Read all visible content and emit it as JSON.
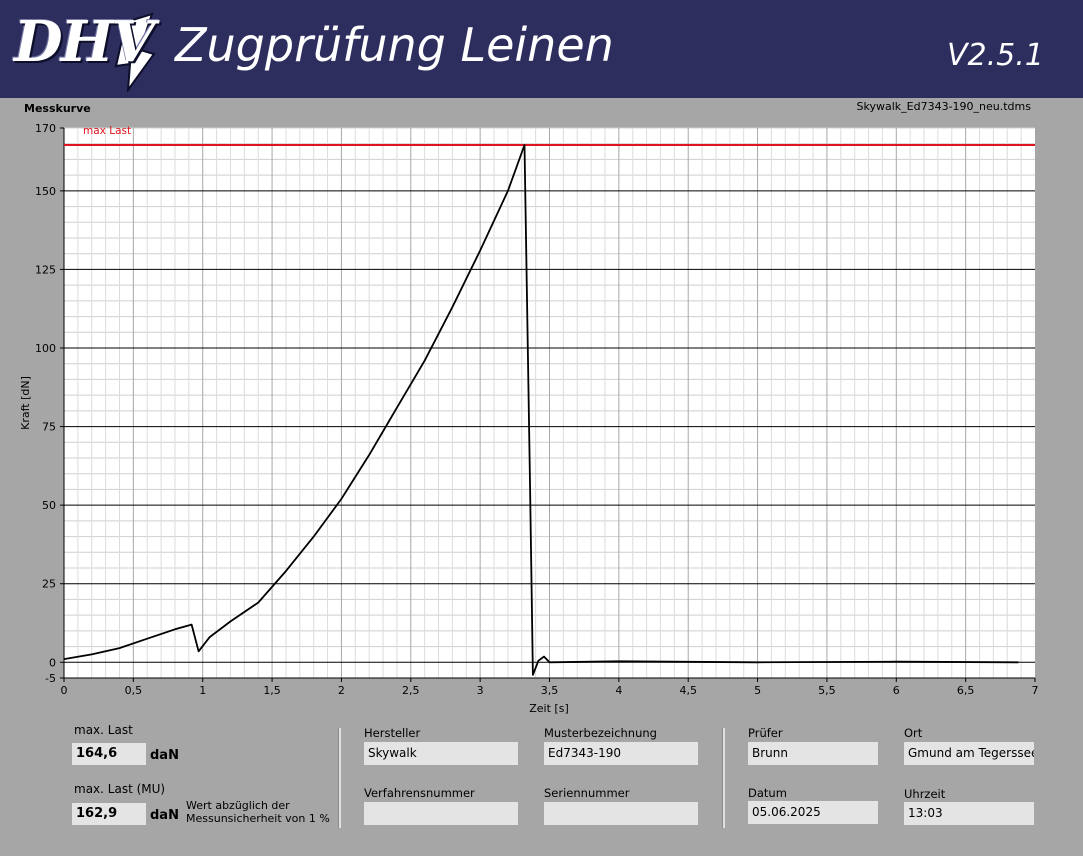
{
  "header": {
    "logo_text": "DHV",
    "title": "Zugprüfung Leinen",
    "version": "V2.5.1"
  },
  "chart_section": {
    "title": "Messkurve",
    "filename": "Skywalk_Ed7343-190_neu.tdms"
  },
  "chart_data": {
    "type": "line",
    "xlabel": "Zeit [s]",
    "ylabel": "Kraft [dN]",
    "xlim": [
      0,
      7
    ],
    "ylim": [
      -5,
      170
    ],
    "x_ticks": [
      "0",
      "0,5",
      "1",
      "1,5",
      "2",
      "2,5",
      "3",
      "3,5",
      "4",
      "4,5",
      "5",
      "5,5",
      "6",
      "6,5",
      "7"
    ],
    "y_ticks": [
      "-5",
      "0",
      "25",
      "50",
      "75",
      "100",
      "125",
      "150",
      "170"
    ],
    "reference_line": {
      "name": "max Last",
      "value": 164.6,
      "color": "#e0141e"
    },
    "series": [
      {
        "x": [
          0,
          0.2,
          0.4,
          0.6,
          0.8,
          0.92,
          0.97,
          1.05,
          1.2,
          1.4,
          1.6,
          1.8,
          2.0,
          2.2,
          2.4,
          2.6,
          2.8,
          3.0,
          3.2,
          3.32,
          3.36,
          3.38,
          3.42,
          3.46,
          3.5,
          4.0,
          5.0,
          6.0,
          6.88
        ],
        "y": [
          1,
          2.5,
          4.5,
          7.5,
          10.5,
          12,
          3.5,
          8,
          13,
          19,
          29,
          40,
          52,
          66,
          81,
          96,
          113,
          131,
          150,
          164.6,
          55,
          -4,
          0.5,
          1.8,
          0,
          0.3,
          0,
          0.2,
          0
        ],
        "color": "#000000"
      }
    ]
  },
  "results": {
    "max_last_label": "max. Last",
    "max_last_value": "164,6",
    "max_last_unit": "daN",
    "max_last_mu_label": "max. Last (MU)",
    "max_last_mu_value": "162,9",
    "max_last_mu_unit": "daN",
    "note_line1": "Wert abzüglich der",
    "note_line2": "Messunsicherheit von 1 %"
  },
  "info": {
    "hersteller_label": "Hersteller",
    "hersteller_value": "Skywalk",
    "muster_label": "Musterbezeichnung",
    "muster_value": "Ed7343-190",
    "verfahren_label": "Verfahrensnummer",
    "verfahren_value": "",
    "serien_label": "Seriennummer",
    "serien_value": "",
    "pruefer_label": "Prüfer",
    "pruefer_value": "Brunn",
    "ort_label": "Ort",
    "ort_value": "Gmund am Tegerssee",
    "datum_label": "Datum",
    "datum_value": "05.06.2025",
    "uhrzeit_label": "Uhrzeit",
    "uhrzeit_value": "13:03"
  }
}
